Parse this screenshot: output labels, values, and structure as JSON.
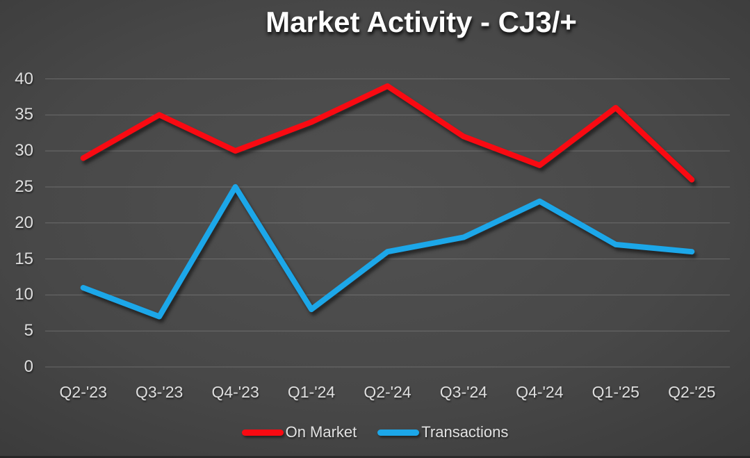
{
  "title": "Market Activity - CJ3/+",
  "colors": {
    "background_center": "#4f4f4f",
    "background_edge": "#262626",
    "gridline": "rgba(255,255,255,0.20)",
    "axis_label": "#dedede",
    "title_text": "#ffffff",
    "on_market": "#f90a12",
    "transactions": "#1ca7e9"
  },
  "chart_data": {
    "type": "line",
    "title": "Market Activity - CJ3/+",
    "categories": [
      "Q2-'23",
      "Q3-'23",
      "Q4-'23",
      "Q1-'24",
      "Q2-'24",
      "Q3-'24",
      "Q4-'24",
      "Q1-'25",
      "Q2-'25"
    ],
    "series": [
      {
        "name": "On Market",
        "color": "#f90a12",
        "values": [
          29,
          35,
          30,
          34,
          39,
          32,
          28,
          36,
          26
        ]
      },
      {
        "name": "Transactions",
        "color": "#1ca7e9",
        "values": [
          11,
          7,
          25,
          8,
          16,
          18,
          23,
          17,
          16
        ]
      }
    ],
    "xlabel": "",
    "ylabel": "",
    "ylim": [
      0,
      40
    ],
    "ytick_step": 5,
    "yticks": [
      0,
      5,
      10,
      15,
      20,
      25,
      30,
      35,
      40
    ],
    "grid": "horizontal",
    "legend_position": "bottom"
  }
}
